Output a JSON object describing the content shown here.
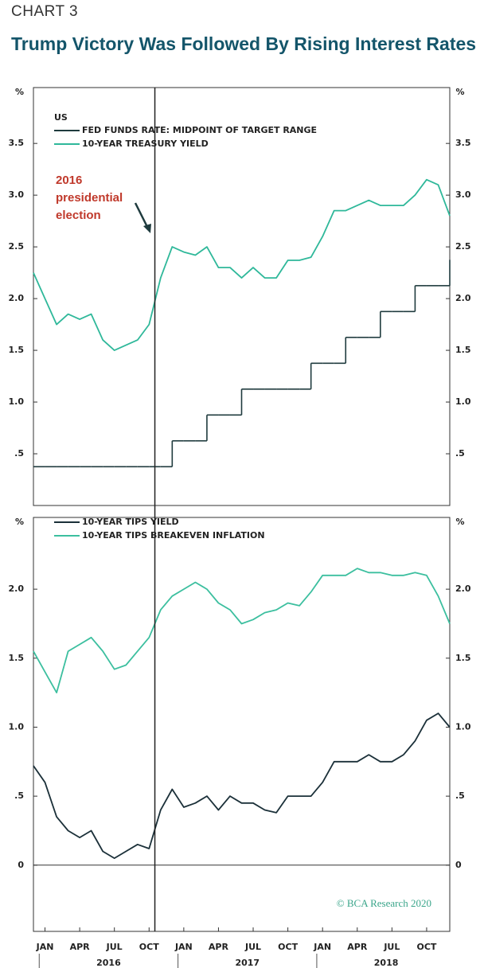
{
  "header": {
    "kicker": "CHART 3",
    "title": "Trump Victory Was Followed By Rising Interest Rates"
  },
  "source": "© BCA Research 2020",
  "chart_data": [
    {
      "type": "line",
      "y_unit": "%",
      "legend_title": "US",
      "annotation": {
        "text": "2016 presidential election",
        "x": "2016-11"
      },
      "x": [
        "2015-12",
        "2016-01",
        "2016-02",
        "2016-03",
        "2016-04",
        "2016-05",
        "2016-06",
        "2016-07",
        "2016-08",
        "2016-09",
        "2016-10",
        "2016-11",
        "2016-12",
        "2017-01",
        "2017-02",
        "2017-03",
        "2017-04",
        "2017-05",
        "2017-06",
        "2017-07",
        "2017-08",
        "2017-09",
        "2017-10",
        "2017-11",
        "2017-12",
        "2018-01",
        "2018-02",
        "2018-03",
        "2018-04",
        "2018-05",
        "2018-06",
        "2018-07",
        "2018-08",
        "2018-09",
        "2018-10",
        "2018-11",
        "2018-12"
      ],
      "xlim": [
        "2015-12",
        "2018-12"
      ],
      "ylim": [
        0,
        4.04
      ],
      "yticks": [
        {
          "value": 0.5,
          "label": ".5"
        },
        {
          "value": 1,
          "label": "1.0"
        },
        1.5,
        {
          "value": 2,
          "label": "2.0"
        },
        2.5,
        {
          "value": 3,
          "label": "3.0"
        },
        3.5
      ],
      "series": [
        {
          "name": "FED FUNDS RATE: MIDPOINT OF TARGET RANGE",
          "color": "#1f3b3e",
          "step": true,
          "values": [
            0.375,
            0.375,
            0.375,
            0.375,
            0.375,
            0.375,
            0.375,
            0.375,
            0.375,
            0.375,
            0.375,
            0.375,
            0.625,
            0.625,
            0.625,
            0.875,
            0.875,
            0.875,
            1.125,
            1.125,
            1.125,
            1.125,
            1.125,
            1.125,
            1.375,
            1.375,
            1.375,
            1.625,
            1.625,
            1.625,
            1.875,
            1.875,
            1.875,
            2.125,
            2.125,
            2.125,
            2.375
          ]
        },
        {
          "name": "10-YEAR TREASURY YIELD",
          "color": "#2fb89a",
          "step": false,
          "values": [
            2.25,
            2.0,
            1.75,
            1.85,
            1.8,
            1.85,
            1.6,
            1.5,
            1.55,
            1.6,
            1.75,
            2.2,
            2.5,
            2.45,
            2.42,
            2.5,
            2.3,
            2.3,
            2.2,
            2.3,
            2.2,
            2.2,
            2.37,
            2.37,
            2.4,
            2.6,
            2.85,
            2.85,
            2.9,
            2.95,
            2.9,
            2.9,
            2.9,
            3.0,
            3.15,
            3.1,
            2.8
          ]
        }
      ]
    },
    {
      "type": "line",
      "y_unit": "%",
      "x": [
        "2015-12",
        "2016-01",
        "2016-02",
        "2016-03",
        "2016-04",
        "2016-05",
        "2016-06",
        "2016-07",
        "2016-08",
        "2016-09",
        "2016-10",
        "2016-11",
        "2016-12",
        "2017-01",
        "2017-02",
        "2017-03",
        "2017-04",
        "2017-05",
        "2017-06",
        "2017-07",
        "2017-08",
        "2017-09",
        "2017-10",
        "2017-11",
        "2017-12",
        "2018-01",
        "2018-02",
        "2018-03",
        "2018-04",
        "2018-05",
        "2018-06",
        "2018-07",
        "2018-08",
        "2018-09",
        "2018-10",
        "2018-11",
        "2018-12"
      ],
      "xlim": [
        "2015-12",
        "2018-12"
      ],
      "xticks": [
        {
          "value": "2016-01",
          "label": "JAN"
        },
        {
          "value": "2016-04",
          "label": "APR"
        },
        {
          "value": "2016-07",
          "label": "JUL"
        },
        {
          "value": "2016-10",
          "label": "OCT"
        },
        {
          "value": "2017-01",
          "label": "JAN"
        },
        {
          "value": "2017-04",
          "label": "APR"
        },
        {
          "value": "2017-07",
          "label": "JUL"
        },
        {
          "value": "2017-10",
          "label": "OCT"
        },
        {
          "value": "2018-01",
          "label": "JAN"
        },
        {
          "value": "2018-04",
          "label": "APR"
        },
        {
          "value": "2018-07",
          "label": "JUL"
        },
        {
          "value": "2018-10",
          "label": "OCT"
        }
      ],
      "year_labels": [
        "2016",
        "2017",
        "2018"
      ],
      "ylim": [
        -0.48,
        2.52
      ],
      "yticks": [
        0,
        {
          "value": 0.5,
          "label": ".5"
        },
        {
          "value": 1,
          "label": "1.0"
        },
        1.5,
        {
          "value": 2,
          "label": "2.0"
        }
      ],
      "series": [
        {
          "name": "10-YEAR TIPS YIELD",
          "color": "#1b3039",
          "step": false,
          "values": [
            0.72,
            0.6,
            0.35,
            0.25,
            0.2,
            0.25,
            0.1,
            0.05,
            0.1,
            0.15,
            0.12,
            0.4,
            0.55,
            0.42,
            0.45,
            0.5,
            0.4,
            0.5,
            0.45,
            0.45,
            0.4,
            0.38,
            0.5,
            0.5,
            0.5,
            0.6,
            0.75,
            0.75,
            0.75,
            0.8,
            0.75,
            0.75,
            0.8,
            0.9,
            1.05,
            1.1,
            1.0
          ]
        },
        {
          "name": "10-YEAR TIPS BREAKEVEN INFLATION",
          "color": "#3cbf9f",
          "step": false,
          "values": [
            1.55,
            1.4,
            1.25,
            1.55,
            1.6,
            1.65,
            1.55,
            1.42,
            1.45,
            1.55,
            1.65,
            1.85,
            1.95,
            2.0,
            2.05,
            2.0,
            1.9,
            1.85,
            1.75,
            1.78,
            1.83,
            1.85,
            1.9,
            1.88,
            1.98,
            2.1,
            2.1,
            2.1,
            2.15,
            2.12,
            2.12,
            2.1,
            2.1,
            2.12,
            2.1,
            1.95,
            1.75
          ]
        }
      ]
    }
  ]
}
